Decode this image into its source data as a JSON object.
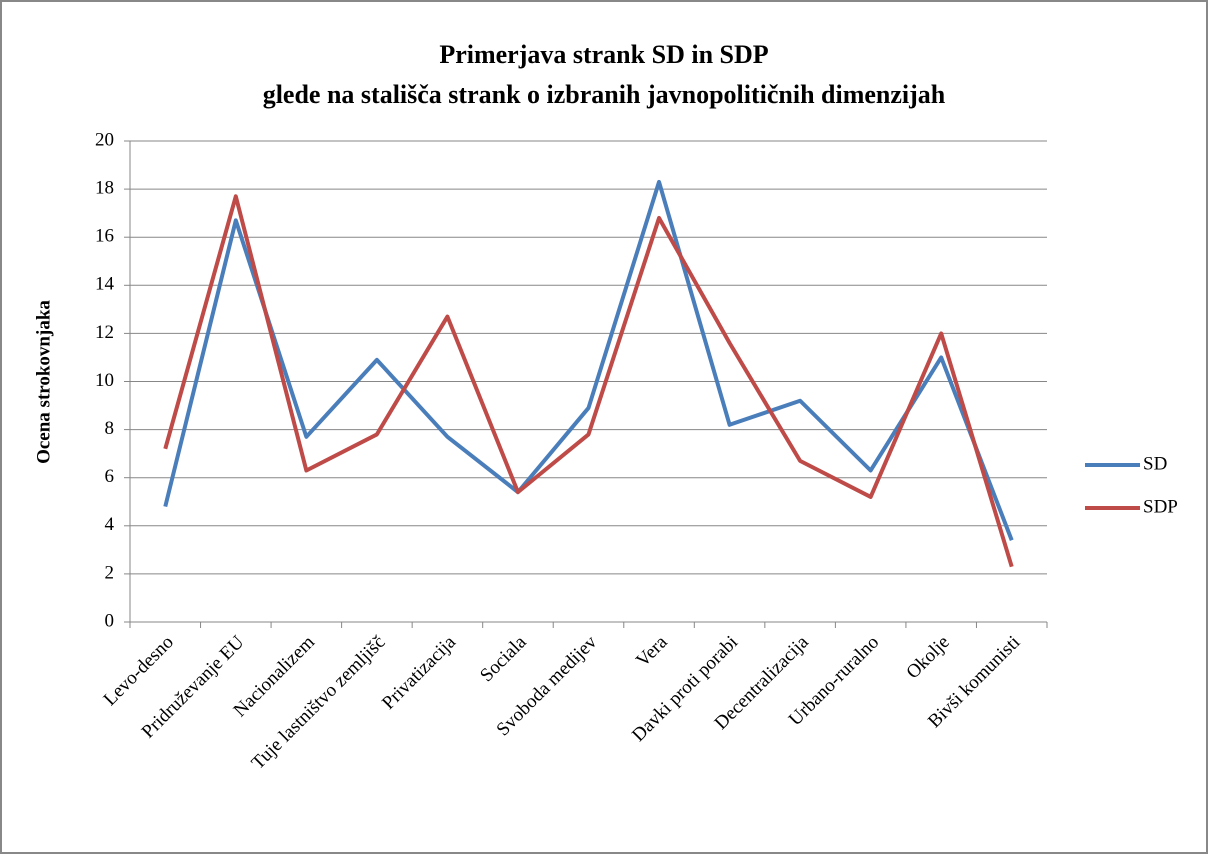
{
  "chart_data": {
    "type": "line",
    "title": "Primerjava strank SD in SDP",
    "subtitle": "glede na stališča strank o izbranih javnopolitičnih dimenzijah",
    "y_label": "Ocena strokovnjaka",
    "categories": [
      "Levo-desno",
      "Pridruževanje EU",
      "Nacionalizem",
      "Tuje lastništvo zemljišč",
      "Privatizacija",
      "Sociala",
      "Svoboda medijev",
      "Vera",
      "Davki proti porabi",
      "Decentralizacija",
      "Urbano-ruralno",
      "Okolje",
      "Bivši komunisti"
    ],
    "series": [
      {
        "name": "SD",
        "color": "#4a7ebb",
        "values": [
          4.8,
          16.7,
          7.7,
          10.9,
          7.7,
          5.4,
          8.9,
          18.3,
          8.2,
          9.2,
          6.3,
          11.0,
          3.4
        ]
      },
      {
        "name": "SDP",
        "color": "#be4b48",
        "values": [
          7.2,
          17.7,
          6.3,
          7.8,
          12.7,
          5.4,
          7.8,
          16.8,
          11.6,
          6.7,
          5.2,
          12.0,
          2.3
        ]
      }
    ],
    "ylim": [
      0,
      20
    ],
    "yticks": [
      0,
      2,
      4,
      6,
      8,
      10,
      12,
      14,
      16,
      18,
      20
    ],
    "grid": true,
    "legend": "right"
  }
}
